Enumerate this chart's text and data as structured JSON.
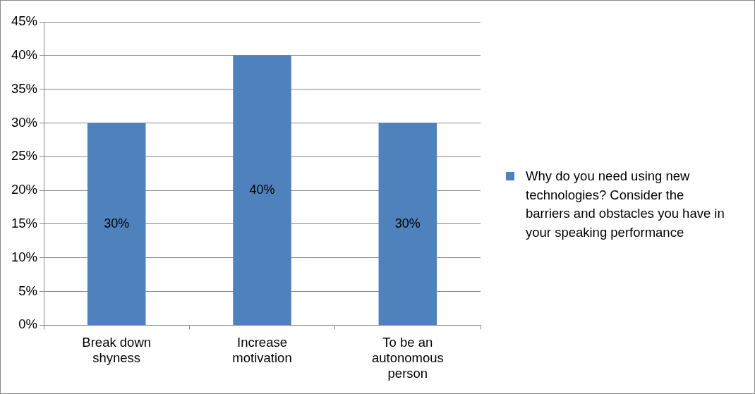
{
  "chart_data": {
    "type": "bar",
    "categories": [
      "Break down shyness",
      "Increase motivation",
      "To be an autonomous person"
    ],
    "series": [
      {
        "name": "Why do you need using new technologies? Consider the barriers and obstacles you have in your speaking performance",
        "color": "#4f81bd",
        "values": [
          30,
          40,
          30
        ],
        "value_labels": [
          "30%",
          "40%",
          "30%"
        ]
      }
    ],
    "ylim": [
      0,
      45
    ],
    "yticks": [
      {
        "value": 0,
        "label": "0%"
      },
      {
        "value": 5,
        "label": "5%"
      },
      {
        "value": 10,
        "label": "10%"
      },
      {
        "value": 15,
        "label": "15%"
      },
      {
        "value": 20,
        "label": "20%"
      },
      {
        "value": 25,
        "label": "25%"
      },
      {
        "value": 30,
        "label": "30%"
      },
      {
        "value": 35,
        "label": "35%"
      },
      {
        "value": 40,
        "label": "40%"
      },
      {
        "value": 45,
        "label": "45%"
      }
    ],
    "grid": "y",
    "legend": "right"
  }
}
